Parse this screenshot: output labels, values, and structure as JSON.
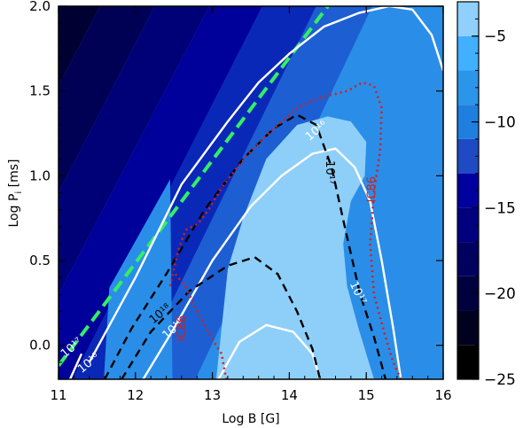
{
  "chart_data": {
    "type": "heatmap",
    "title": "",
    "xlabel": "Log B [G]",
    "ylabel": "Log P",
    "ylabel_sub": "i",
    "ylabel_unit": " [ms]",
    "xlim": [
      11,
      16
    ],
    "ylim": [
      -0.2,
      2.0
    ],
    "xticks": [
      "11",
      "12",
      "13",
      "14",
      "15",
      "16"
    ],
    "yticks": [
      "0.0",
      "0.5",
      "1.0",
      "1.5",
      "2.0"
    ],
    "colorbar": {
      "ticks": [
        "-25",
        "-20",
        "-15",
        "-10",
        "-5"
      ],
      "range": [
        -25,
        -3
      ],
      "levels": [
        {
          "from": -25,
          "to": -23,
          "color": "#000000"
        },
        {
          "from": -23,
          "to": -21,
          "color": "#00001f"
        },
        {
          "from": -21,
          "to": -19,
          "color": "#00003f"
        },
        {
          "from": -19,
          "to": -17,
          "color": "#00005f"
        },
        {
          "from": -17,
          "to": -15,
          "color": "#00007f"
        },
        {
          "from": -15,
          "to": -13,
          "color": "#00009f"
        },
        {
          "from": -13,
          "to": -11,
          "color": "#1f4ac4"
        },
        {
          "from": -11,
          "to": -9,
          "color": "#1f7fdf"
        },
        {
          "from": -9,
          "to": -7,
          "color": "#2b95ea"
        },
        {
          "from": -7,
          "to": -5,
          "color": "#40b0ff"
        },
        {
          "from": -5,
          "to": -3,
          "color": "#8fd0ff"
        }
      ]
    },
    "bands": [
      {
        "color": "#000033",
        "points": [
          [
            11,
            1.53
          ],
          [
            11.54,
            2.0
          ],
          [
            11,
            2.0
          ]
        ]
      },
      {
        "color": "#000055",
        "points": [
          [
            11,
            0.9
          ],
          [
            12.25,
            2.0
          ],
          [
            11.54,
            2.0
          ],
          [
            11,
            1.53
          ]
        ]
      },
      {
        "color": "#000077",
        "points": [
          [
            11,
            0.3
          ],
          [
            12.96,
            2.0
          ],
          [
            12.25,
            2.0
          ],
          [
            11,
            0.9
          ]
        ]
      },
      {
        "color": "#00009a",
        "points": [
          [
            11,
            -0.2
          ],
          [
            11.18,
            -0.2
          ],
          [
            13.65,
            2.0
          ],
          [
            12.96,
            2.0
          ],
          [
            11,
            0.3
          ]
        ]
      },
      {
        "color": "#0a28b8",
        "points": [
          [
            11.18,
            -0.2
          ],
          [
            11.98,
            -0.2
          ],
          [
            14.35,
            2.0
          ],
          [
            13.65,
            2.0
          ]
        ]
      },
      {
        "color": "#1d5fd2",
        "points": [
          [
            11.98,
            -0.2
          ],
          [
            12.78,
            -0.2
          ],
          [
            15.08,
            2.0
          ],
          [
            14.35,
            2.0
          ]
        ]
      },
      {
        "color": "#2a8ee8",
        "points": [
          [
            11.59,
            -0.2
          ],
          [
            11.66,
            0.34
          ],
          [
            12.45,
            0.98
          ],
          [
            12.48,
            -0.2
          ]
        ]
      },
      {
        "color": "#2a8ee8",
        "points": [
          [
            12.78,
            -0.2
          ],
          [
            16,
            -0.2
          ],
          [
            16,
            2.0
          ],
          [
            15.08,
            2.0
          ]
        ]
      },
      {
        "color": "#8dcff9",
        "points": [
          [
            13.05,
            -0.2
          ],
          [
            13.2,
            0.45
          ],
          [
            13.4,
            0.75
          ],
          [
            13.7,
            1.1
          ],
          [
            14.1,
            1.3
          ],
          [
            14.5,
            1.35
          ],
          [
            14.8,
            1.32
          ],
          [
            15.0,
            1.2
          ],
          [
            14.98,
            1.0
          ],
          [
            14.8,
            0.85
          ],
          [
            14.7,
            0.6
          ],
          [
            14.75,
            0.35
          ],
          [
            14.9,
            0.1
          ],
          [
            15.1,
            -0.2
          ]
        ]
      }
    ],
    "lines": [
      {
        "name": "green-dashed",
        "color": "#33ee66",
        "width": 4,
        "dash": "14 7",
        "points": [
          [
            11,
            -0.12
          ],
          [
            14.5,
            2.0
          ]
        ]
      },
      {
        "name": "white-upper",
        "color": "#ffffff",
        "width": 2.4,
        "dash": "",
        "points": [
          [
            11.4,
            -0.1
          ],
          [
            12.0,
            0.4
          ],
          [
            12.6,
            0.95
          ],
          [
            13.2,
            1.32
          ],
          [
            13.6,
            1.55
          ],
          [
            14.0,
            1.72
          ],
          [
            14.45,
            1.88
          ],
          [
            14.9,
            1.96
          ],
          [
            15.3,
            2.0
          ],
          [
            15.6,
            1.98
          ],
          [
            15.85,
            1.83
          ],
          [
            16.0,
            1.62
          ]
        ]
      },
      {
        "name": "white-middle",
        "color": "#ffffff",
        "width": 2.4,
        "dash": "",
        "points": [
          [
            12.1,
            -0.2
          ],
          [
            12.5,
            0.1
          ],
          [
            13.0,
            0.5
          ],
          [
            13.5,
            0.82
          ],
          [
            13.9,
            1.0
          ],
          [
            14.3,
            1.13
          ],
          [
            14.6,
            1.16
          ],
          [
            14.85,
            1.05
          ],
          [
            15.05,
            0.85
          ],
          [
            15.2,
            0.5
          ],
          [
            15.35,
            0.1
          ],
          [
            15.45,
            -0.2
          ]
        ]
      },
      {
        "name": "white-lower",
        "color": "#ffffff",
        "width": 2.4,
        "dash": "",
        "points": [
          [
            13.08,
            -0.2
          ],
          [
            13.35,
            0.02
          ],
          [
            13.7,
            0.12
          ],
          [
            14.05,
            0.08
          ],
          [
            14.3,
            -0.05
          ],
          [
            14.4,
            -0.2
          ]
        ]
      },
      {
        "name": "white-upper-left",
        "color": "#ffffff",
        "width": 2.4,
        "dash": "",
        "points": [
          [
            11.15,
            -0.2
          ],
          [
            11.3,
            -0.05
          ]
        ]
      },
      {
        "name": "black-dashed-outer",
        "color": "#000000",
        "width": 2.4,
        "dash": "9 6",
        "points": [
          [
            11.6,
            -0.2
          ],
          [
            11.95,
            0.1
          ],
          [
            12.4,
            0.42
          ],
          [
            12.9,
            0.8
          ],
          [
            13.4,
            1.1
          ],
          [
            13.8,
            1.28
          ],
          [
            14.1,
            1.36
          ],
          [
            14.35,
            1.3
          ],
          [
            14.55,
            1.05
          ],
          [
            14.72,
            0.7
          ],
          [
            14.92,
            0.3
          ],
          [
            15.1,
            0.05
          ],
          [
            15.25,
            -0.2
          ]
        ]
      },
      {
        "name": "black-dashed-inner",
        "color": "#000000",
        "width": 2.4,
        "dash": "9 6",
        "points": [
          [
            11.82,
            -0.2
          ],
          [
            12.2,
            0.08
          ],
          [
            12.7,
            0.32
          ],
          [
            13.2,
            0.47
          ],
          [
            13.55,
            0.52
          ],
          [
            13.85,
            0.42
          ],
          [
            14.1,
            0.2
          ],
          [
            14.3,
            -0.02
          ],
          [
            14.4,
            -0.2
          ]
        ]
      },
      {
        "name": "red-dotted-ic86",
        "color": "#d02020",
        "width": 2.6,
        "dash": "2 4",
        "points": [
          [
            12.45,
            0.35
          ],
          [
            12.55,
            0.55
          ],
          [
            12.65,
            0.68
          ],
          [
            12.82,
            0.72
          ],
          [
            12.95,
            0.8
          ],
          [
            13.15,
            0.95
          ],
          [
            13.45,
            1.12
          ],
          [
            13.8,
            1.28
          ],
          [
            14.1,
            1.4
          ],
          [
            14.4,
            1.46
          ],
          [
            14.75,
            1.5
          ],
          [
            14.95,
            1.55
          ],
          [
            15.1,
            1.53
          ],
          [
            15.2,
            1.4
          ],
          [
            15.18,
            1.15
          ],
          [
            15.1,
            0.9
          ],
          [
            15.05,
            0.6
          ],
          [
            15.1,
            0.3
          ],
          [
            15.25,
            0.05
          ],
          [
            15.35,
            -0.1
          ],
          [
            15.45,
            -0.2
          ]
        ]
      },
      {
        "name": "red-dotted-ic86-lower",
        "color": "#d02020",
        "width": 2.6,
        "dash": "2 4",
        "points": [
          [
            12.52,
            0.42
          ],
          [
            12.65,
            0.35
          ],
          [
            12.78,
            0.22
          ],
          [
            12.92,
            0.1
          ],
          [
            13.02,
            0.02
          ],
          [
            13.12,
            -0.05
          ],
          [
            13.18,
            -0.2
          ]
        ]
      }
    ],
    "annotations": [
      {
        "text": "10¹⁷",
        "x": 11.2,
        "y": -0.03,
        "color": "#ffffff",
        "angle": -40
      },
      {
        "text": "10¹⁶",
        "x": 11.42,
        "y": -0.12,
        "color": "#ffffff",
        "angle": -40
      },
      {
        "text": "10¹⁸",
        "x": 12.35,
        "y": 0.17,
        "color": "#000000",
        "angle": -40
      },
      {
        "text": "10¹⁶",
        "x": 12.52,
        "y": 0.08,
        "color": "#ffffff",
        "angle": -42
      },
      {
        "text": "IC86",
        "x": 12.65,
        "y": 0.1,
        "color": "#d02020",
        "angle": -90
      },
      {
        "text": "10¹⁶",
        "x": 14.38,
        "y": 1.25,
        "color": "#ffffff",
        "angle": -40
      },
      {
        "text": ".10¹⁷",
        "x": 14.48,
        "y": 1.03,
        "color": "#000000",
        "angle": 90
      },
      {
        "text": "IC86",
        "x": 15.12,
        "y": 0.92,
        "color": "#d02020",
        "angle": -90
      },
      {
        "text": "10¹⁷",
        "x": 14.85,
        "y": 0.3,
        "color": "#ffffff",
        "angle": 65
      }
    ]
  }
}
